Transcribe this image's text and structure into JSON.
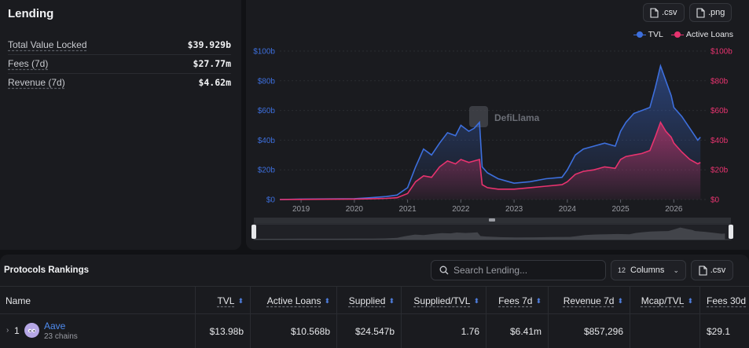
{
  "summary": {
    "title": "Lending",
    "stats": [
      {
        "label": "Total Value Locked",
        "value": "$39.929b"
      },
      {
        "label": "Fees (7d)",
        "value": "$27.77m"
      },
      {
        "label": "Revenue (7d)",
        "value": "$4.62m"
      }
    ]
  },
  "chart": {
    "csv_label": ".csv",
    "png_label": ".png",
    "watermark": "DefiLlama",
    "colors": {
      "tvl": "#3d6fdd",
      "loans": "#e8336f",
      "grid": "#2a2c31"
    }
  },
  "chart_data": {
    "type": "line",
    "title": "",
    "x_ticks": [
      "2019",
      "2020",
      "2021",
      "2022",
      "2023",
      "2024",
      "2025",
      "2026"
    ],
    "y_left_ticks": [
      "$0",
      "$20b",
      "$40b",
      "$60b",
      "$80b",
      "$100b"
    ],
    "y_right_ticks": [
      "$0",
      "$20b",
      "$40b",
      "$60b",
      "$80b",
      "$100b"
    ],
    "xlim": [
      2018.6,
      2026.6
    ],
    "ylim": [
      0,
      100
    ],
    "grid": true,
    "legend": "top-right",
    "series": [
      {
        "name": "TVL",
        "x": [
          2018.6,
          2019,
          2019.5,
          2020,
          2020.3,
          2020.6,
          2020.8,
          2021,
          2021.15,
          2021.3,
          2021.45,
          2021.6,
          2021.75,
          2021.9,
          2022,
          2022.15,
          2022.25,
          2022.35,
          2022.4,
          2022.5,
          2022.7,
          2022.9,
          2023,
          2023.3,
          2023.6,
          2023.9,
          2024,
          2024.15,
          2024.3,
          2024.5,
          2024.7,
          2024.9,
          2025,
          2025.1,
          2025.25,
          2025.4,
          2025.55,
          2025.65,
          2025.75,
          2025.85,
          2025.95,
          2026,
          2026.15,
          2026.3,
          2026.45,
          2026.5
        ],
        "values": [
          0,
          0.3,
          0.4,
          0.6,
          1.2,
          2,
          3,
          8,
          22,
          34,
          30,
          38,
          45,
          43,
          50,
          46,
          48,
          52,
          22,
          18,
          14,
          12,
          11,
          12,
          14,
          15,
          20,
          30,
          34,
          36,
          38,
          36,
          46,
          52,
          58,
          60,
          62,
          75,
          90,
          80,
          70,
          62,
          56,
          48,
          40,
          42
        ]
      },
      {
        "name": "Active Loans",
        "x": [
          2018.6,
          2019,
          2019.5,
          2020,
          2020.3,
          2020.6,
          2020.8,
          2021,
          2021.15,
          2021.3,
          2021.45,
          2021.6,
          2021.75,
          2021.9,
          2022,
          2022.15,
          2022.25,
          2022.35,
          2022.4,
          2022.5,
          2022.7,
          2022.9,
          2023,
          2023.3,
          2023.6,
          2023.9,
          2024,
          2024.15,
          2024.3,
          2024.5,
          2024.7,
          2024.9,
          2025,
          2025.1,
          2025.25,
          2025.4,
          2025.55,
          2025.65,
          2025.75,
          2025.85,
          2025.95,
          2026,
          2026.15,
          2026.3,
          2026.45,
          2026.5
        ],
        "values": [
          0,
          0.1,
          0.2,
          0.3,
          0.5,
          0.8,
          1.2,
          4,
          12,
          16,
          15,
          22,
          26,
          24,
          27,
          25,
          26,
          27,
          10,
          8,
          7,
          7,
          7,
          8,
          9,
          10,
          12,
          17,
          19,
          20,
          22,
          21,
          27,
          29,
          30,
          31,
          33,
          42,
          52,
          46,
          42,
          38,
          32,
          27,
          24,
          25
        ]
      }
    ]
  },
  "rankings": {
    "title": "Protocols Rankings",
    "search_placeholder": "Search Lending...",
    "columns_count": "12",
    "columns_label": "Columns",
    "csv_label": ".csv",
    "headers": {
      "name": "Name",
      "tvl": "TVL",
      "active_loans": "Active Loans",
      "supplied": "Supplied",
      "supplied_tvl": "Supplied/TVL",
      "fees_7d": "Fees 7d",
      "revenue_7d": "Revenue 7d",
      "mcap_tvl": "Mcap/TVL",
      "fees_30d": "Fees 30d"
    },
    "rows": [
      {
        "rank": "1",
        "name": "Aave",
        "chains": "23 chains",
        "tvl": "$13.98b",
        "active_loans": "$10.568b",
        "supplied": "$24.547b",
        "supplied_tvl": "1.76",
        "fees_7d": "$6.41m",
        "revenue_7d": "$857,296",
        "mcap_tvl": "",
        "fees_30d": "$29.1"
      }
    ]
  }
}
